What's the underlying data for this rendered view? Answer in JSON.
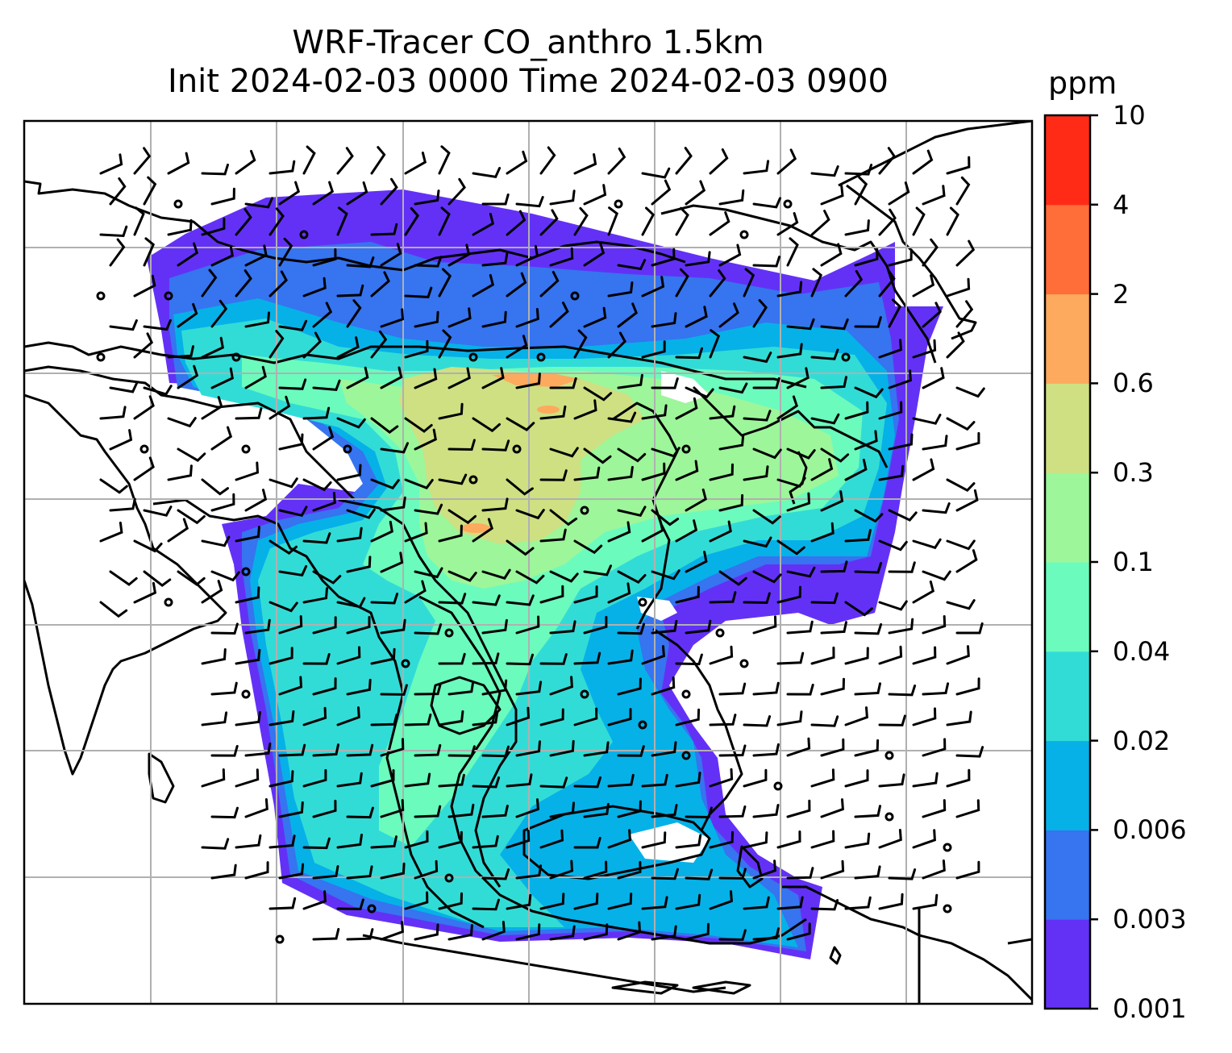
{
  "title": {
    "line1": "WRF-Tracer CO_anthro 1.5km",
    "line2": "Init 2024-02-03 0000 Time 2024-02-03 0900"
  },
  "colorbar": {
    "unit": "ppm",
    "levels": [
      "0.001",
      "0.003",
      "0.006",
      "0.02",
      "0.04",
      "0.1",
      "0.3",
      "0.6",
      "2",
      "4",
      "10"
    ],
    "colors": [
      "#6331f6",
      "#3674f0",
      "#06b1e8",
      "#32dcd6",
      "#6bfbbd",
      "#9df69a",
      "#cee082",
      "#fdaa5e",
      "#ff6e38",
      "#ff2b17"
    ]
  },
  "map": {
    "gridlines": true,
    "grid_color": "#b0b0b0",
    "coastline_color": "#000000",
    "variable": "CO_anthro"
  }
}
